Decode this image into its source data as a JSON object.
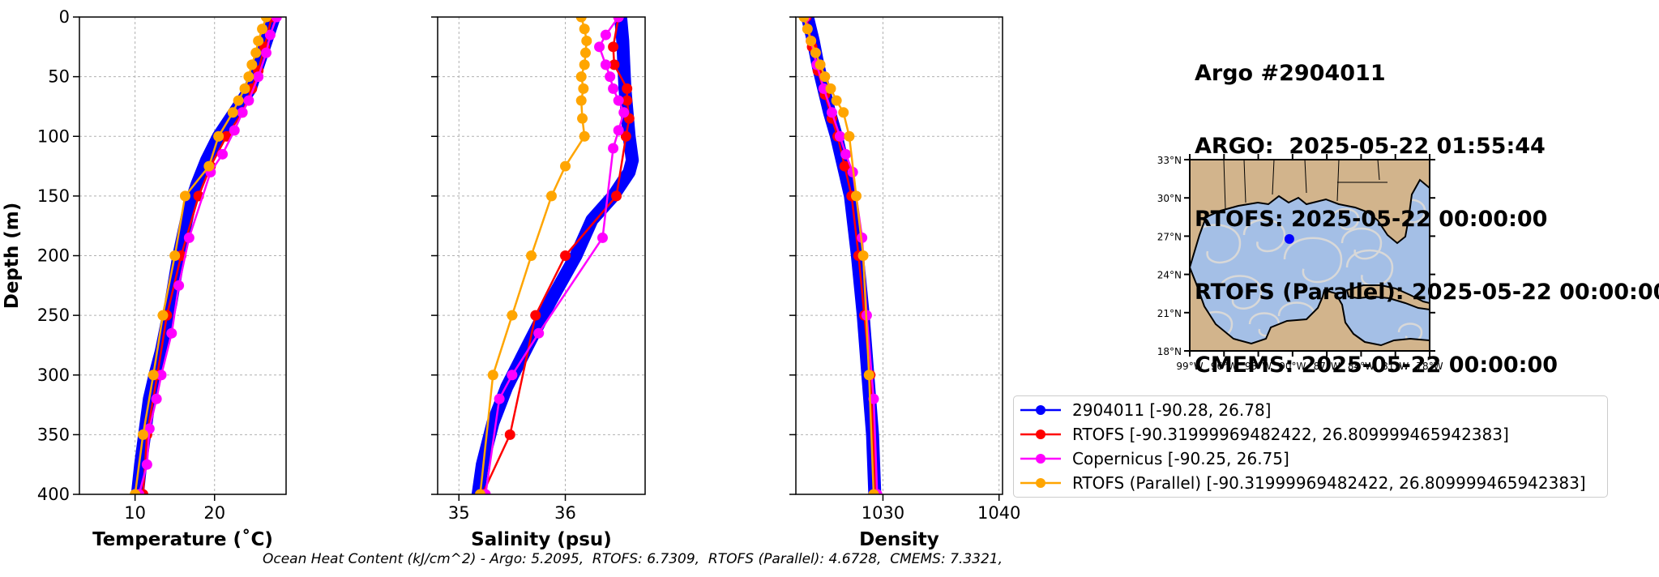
{
  "title": {
    "argo_id": "Argo #2904011",
    "argo_time": "ARGO:  2025-05-22 01:55:44",
    "rtofs_time": "RTOFS: 2025-05-22 00:00:00",
    "rtofs_parallel_time": "RTOFS (Parallel): 2025-05-22 00:00:00",
    "cmems_time": "CMEMS: 2025-05-22 00:00:00"
  },
  "footer": "Ocean Heat Content (kJ/cm^2) - Argo: 5.2095,  RTOFS: 6.7309,  RTOFS (Parallel): 4.6728,  CMEMS: 7.3321,",
  "legend": [
    {
      "label": "2904011 [-90.28, 26.78]",
      "color": "#0000ff"
    },
    {
      "label": "RTOFS [-90.31999969482422, 26.809999465942383]",
      "color": "#ff0000"
    },
    {
      "label": "Copernicus [-90.25, 26.75]",
      "color": "#ff00ff"
    },
    {
      "label": "RTOFS (Parallel) [-90.31999969482422, 26.809999465942383]",
      "color": "#ffa500"
    }
  ],
  "map": {
    "lat_ticks": [
      "33°N",
      "30°N",
      "27°N",
      "24°N",
      "21°N",
      "18°N"
    ],
    "lon_ticks": [
      "99°W",
      "96°W",
      "93°W",
      "90°W",
      "87°W",
      "84°W",
      "81°W",
      "78°W"
    ],
    "xlim": [
      -99,
      -78
    ],
    "ylim": [
      18,
      33
    ],
    "float_position": {
      "lon": -90.28,
      "lat": 26.78
    },
    "colors": {
      "land": "#d2b48c",
      "ocean": "#a4bfe6",
      "streamline": "#d8d8d8",
      "float": "#0000ff"
    }
  },
  "chart_data": [
    {
      "type": "line",
      "xlabel": "Temperature (˚C)",
      "ylabel": "Depth (m)",
      "xlim": [
        3,
        29
      ],
      "ylim": [
        400,
        0
      ],
      "xticks": [
        10,
        20
      ],
      "yticks": [
        0,
        50,
        100,
        150,
        200,
        250,
        300,
        350,
        400
      ],
      "grid": true,
      "series": [
        {
          "name": "2904011 [-90.28, 26.78]",
          "color": "#0000ff",
          "thick": true,
          "x": [
            27.5,
            26.5,
            25.5,
            24.5,
            22.5,
            20.5,
            19.0,
            17.8,
            16.8,
            15.5,
            14.5,
            13.3,
            12.5,
            11.8,
            11.2,
            10.7,
            10.3
          ],
          "y": [
            0,
            20,
            40,
            60,
            80,
            100,
            120,
            140,
            160,
            200,
            240,
            280,
            300,
            320,
            350,
            375,
            400
          ]
        },
        {
          "name": "RTOFS [-90.31999969482422, 26.809999465942383]",
          "color": "#ff0000",
          "x": [
            27.2,
            26.3,
            25.5,
            24.7,
            23.5,
            21.5,
            19.5,
            18.0,
            15.8,
            14.0,
            12.8,
            11.5,
            11.0
          ],
          "y": [
            0,
            25,
            45,
            60,
            80,
            100,
            125,
            150,
            200,
            250,
            300,
            350,
            400
          ]
        },
        {
          "name": "Copernicus [-90.25, 26.75]",
          "color": "#ff00ff",
          "x": [
            27.8,
            27.0,
            26.5,
            25.5,
            24.3,
            23.5,
            22.5,
            21.0,
            19.5,
            16.8,
            15.5,
            14.6,
            13.3,
            12.7,
            11.8,
            11.5,
            10.5
          ],
          "y": [
            0,
            15,
            30,
            50,
            70,
            80,
            95,
            115,
            130,
            185,
            225,
            265,
            300,
            320,
            345,
            375,
            400
          ]
        },
        {
          "name": "RTOFS (Parallel) [-90.31999969482422, 26.809999465942383]",
          "color": "#ffa500",
          "x": [
            26.5,
            26.0,
            25.5,
            25.2,
            24.7,
            24.3,
            23.8,
            23.0,
            22.3,
            20.5,
            19.3,
            16.3,
            15.0,
            13.5,
            12.3,
            11.0,
            10.0
          ],
          "y": [
            0,
            10,
            20,
            30,
            40,
            50,
            60,
            70,
            80,
            100,
            125,
            150,
            200,
            250,
            300,
            350,
            400
          ]
        }
      ]
    },
    {
      "type": "line",
      "xlabel": "Salinity (psu)",
      "xlim": [
        34.8,
        36.75
      ],
      "ylim": [
        400,
        0
      ],
      "xticks": [
        35,
        36
      ],
      "yticks": [
        0,
        50,
        100,
        150,
        200,
        250,
        300,
        350,
        400
      ],
      "grid": true,
      "series": [
        {
          "name": "2904011 [-90.28, 26.78]",
          "color": "#0000ff",
          "thick": true,
          "x": [
            36.52,
            36.54,
            36.55,
            36.56,
            36.58,
            36.6,
            36.63,
            36.6,
            36.45,
            36.25,
            36.1,
            35.85,
            35.62,
            35.45,
            35.32,
            35.22,
            35.18
          ],
          "y": [
            0,
            20,
            40,
            60,
            80,
            100,
            120,
            130,
            150,
            170,
            200,
            240,
            280,
            310,
            340,
            375,
            400
          ]
        },
        {
          "name": "RTOFS [-90.31999969482422, 26.809999465942383]",
          "color": "#ff0000",
          "x": [
            36.5,
            36.45,
            36.46,
            36.58,
            36.58,
            36.6,
            36.57,
            36.48,
            36.0,
            35.72,
            35.48,
            35.22
          ],
          "y": [
            0,
            25,
            40,
            60,
            70,
            85,
            100,
            150,
            200,
            250,
            350,
            400
          ]
        },
        {
          "name": "Copernicus [-90.25, 26.75]",
          "color": "#ff00ff",
          "x": [
            36.5,
            36.38,
            36.32,
            36.38,
            36.42,
            36.45,
            36.5,
            36.55,
            36.5,
            36.45,
            36.35,
            35.75,
            35.5,
            35.38,
            35.25
          ],
          "y": [
            0,
            15,
            25,
            40,
            50,
            60,
            70,
            80,
            95,
            110,
            185,
            265,
            300,
            320,
            400
          ]
        },
        {
          "name": "RTOFS (Parallel) [-90.31999969482422, 26.809999465942383]",
          "color": "#ffa500",
          "x": [
            36.15,
            36.18,
            36.2,
            36.19,
            36.18,
            36.15,
            36.17,
            36.15,
            36.16,
            36.18,
            36.0,
            35.87,
            35.68,
            35.5,
            35.32,
            35.2
          ],
          "y": [
            0,
            10,
            20,
            30,
            40,
            50,
            60,
            70,
            85,
            100,
            125,
            150,
            200,
            250,
            300,
            400
          ]
        }
      ]
    },
    {
      "type": "line",
      "xlabel": "Density",
      "xlim": [
        1022.5,
        1040.3
      ],
      "ylim": [
        400,
        0
      ],
      "xticks": [
        1030,
        1040
      ],
      "yticks": [
        0,
        50,
        100,
        150,
        200,
        250,
        300,
        350,
        400
      ],
      "grid": true,
      "series": [
        {
          "name": "2904011 [-90.28, 26.78]",
          "color": "#0000ff",
          "thick": true,
          "x": [
            1023.5,
            1024.0,
            1024.4,
            1024.9,
            1025.4,
            1026.0,
            1026.6,
            1027.2,
            1027.8,
            1028.3,
            1028.7,
            1029.1,
            1029.3
          ],
          "y": [
            0,
            20,
            40,
            60,
            80,
            100,
            125,
            150,
            200,
            250,
            300,
            350,
            400
          ]
        },
        {
          "name": "RTOFS [-90.31999969482422, 26.809999465942383]",
          "color": "#ff0000",
          "x": [
            1023.4,
            1023.9,
            1024.4,
            1025.0,
            1025.6,
            1026.1,
            1026.7,
            1027.3,
            1027.9,
            1028.4,
            1028.9,
            1029.4
          ],
          "y": [
            0,
            25,
            45,
            65,
            85,
            100,
            125,
            150,
            200,
            250,
            300,
            400
          ]
        },
        {
          "name": "Copernicus [-90.25, 26.75]",
          "color": "#ff00ff",
          "x": [
            1023.3,
            1023.8,
            1024.3,
            1024.9,
            1025.6,
            1026.3,
            1026.8,
            1027.4,
            1028.2,
            1028.6,
            1029.2,
            1029.5
          ],
          "y": [
            0,
            20,
            40,
            60,
            80,
            100,
            115,
            130,
            185,
            250,
            320,
            400
          ]
        },
        {
          "name": "RTOFS (Parallel) [-90.31999969482422, 26.809999465942383]",
          "color": "#ffa500",
          "x": [
            1023.2,
            1023.5,
            1023.8,
            1024.2,
            1024.6,
            1025.0,
            1025.5,
            1026.0,
            1026.6,
            1027.1,
            1027.7,
            1028.3,
            1028.8,
            1029.2
          ],
          "y": [
            0,
            10,
            20,
            30,
            40,
            50,
            60,
            70,
            80,
            100,
            150,
            200,
            300,
            400
          ]
        }
      ]
    }
  ]
}
